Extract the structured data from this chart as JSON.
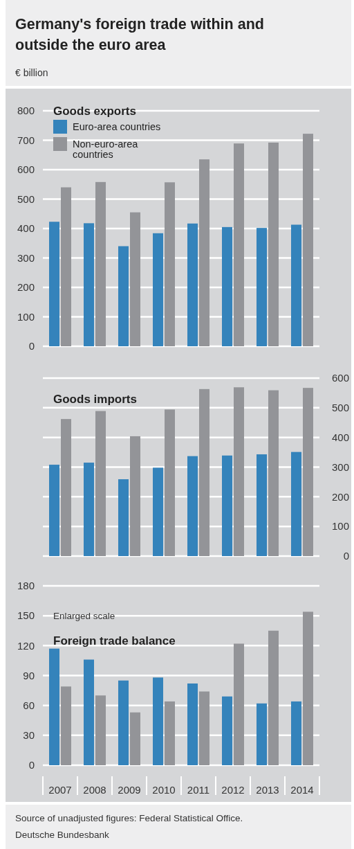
{
  "chart_data": [
    {
      "type": "bar",
      "title": "Germany's foreign trade within and outside the euro area",
      "ylabel": "€ billion",
      "subtitle": "Goods exports",
      "categories": [
        "2007",
        "2008",
        "2009",
        "2010",
        "2011",
        "2012",
        "2013",
        "2014"
      ],
      "series": [
        {
          "name": "Euro-area countries",
          "color": "#3483bb",
          "values": [
            423,
            418,
            340,
            384,
            417,
            405,
            402,
            413
          ]
        },
        {
          "name": "Non-euro-area countries",
          "color": "#939498",
          "values": [
            540,
            558,
            455,
            557,
            635,
            689,
            692,
            722
          ]
        }
      ],
      "ylim": [
        0,
        800
      ],
      "yticks": [
        0,
        100,
        200,
        300,
        400,
        500,
        600,
        700,
        800
      ],
      "grid": "y",
      "legend": "top left",
      "tick_labels": "y"
    },
    {
      "type": "bar",
      "subtitle": "Goods imports",
      "categories": [
        "2007",
        "2008",
        "2009",
        "2010",
        "2011",
        "2012",
        "2013",
        "2014"
      ],
      "series": [
        {
          "color": "#3483bb",
          "axis": "y2",
          "values": [
            308,
            315,
            259,
            298,
            337,
            339,
            343,
            351
          ]
        },
        {
          "color": "#939498",
          "axis": "y2",
          "values": [
            462,
            489,
            404,
            494,
            563,
            569,
            559,
            567
          ]
        }
      ],
      "y2lim": [
        0,
        600
      ],
      "y2ticks": [
        0,
        100,
        200,
        300,
        400,
        500,
        600
      ],
      "grid": "y",
      "tick_labels": "y"
    },
    {
      "type": "bar",
      "subtitle": "Foreign trade balance",
      "categories": [
        "2007",
        "2008",
        "2009",
        "2010",
        "2011",
        "2012",
        "2013",
        "2014"
      ],
      "series": [
        {
          "color": "#3483bb",
          "values": [
            117,
            106,
            85,
            88,
            82,
            69,
            62,
            64
          ]
        },
        {
          "color": "#939498",
          "values": [
            79,
            70,
            53,
            64,
            74,
            122,
            135,
            154
          ]
        }
      ],
      "ylim": [
        0,
        180
      ],
      "yticks": [
        0,
        30,
        60,
        90,
        120,
        150,
        180
      ],
      "grid": "y",
      "annotations": [
        "Enlarged scale",
        "Source of unadjusted figures: Federal Statistical Office.",
        "Deutsche Bundesbank"
      ]
    }
  ]
}
